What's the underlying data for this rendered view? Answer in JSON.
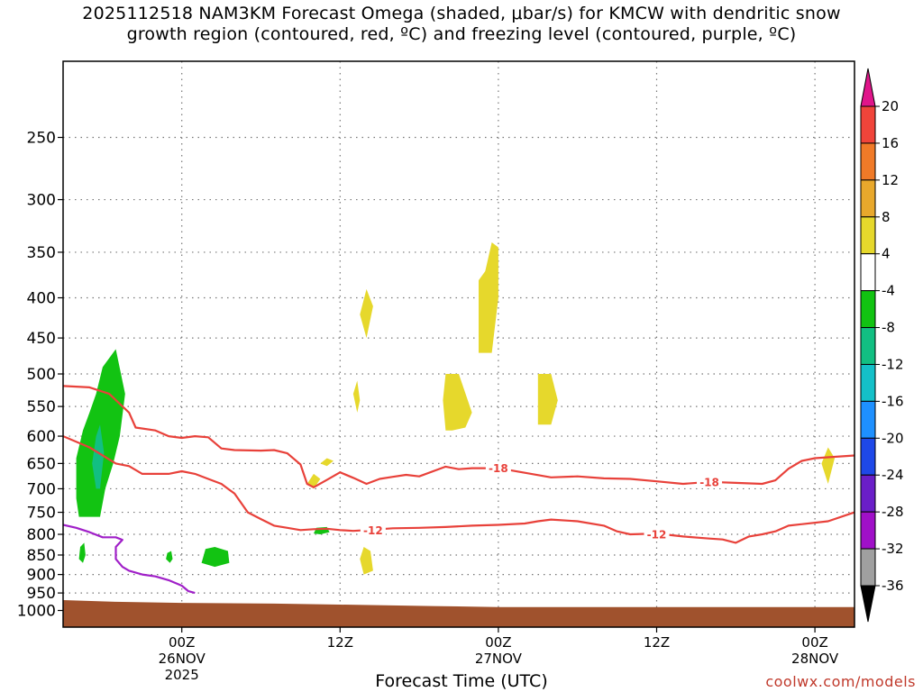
{
  "title": {
    "line1": "2025112518 NAM3KM Forecast Omega (shaded, μbar/s) for KMCW with dendritic snow",
    "line2": "growth region (contoured, red, ºC) and freezing level (contoured, purple, ºC)"
  },
  "credit": "coolwx.com/models",
  "colors": {
    "dgz_contour": "#e8413a",
    "freezing_contour": "#a020c8",
    "terrain": "#a0522d",
    "gridline": "#777777"
  },
  "chart_data": {
    "type": "heatmap",
    "xlabel": "Forecast Time (UTC)",
    "x_axis": {
      "unit": "forecast hours from 2025112518",
      "range": [
        -3,
        57
      ],
      "ticks": [
        {
          "hour": 6,
          "label": "00Z",
          "sub1": "26NOV",
          "sub2": "2025"
        },
        {
          "hour": 18,
          "label": "12Z",
          "sub1": "",
          "sub2": ""
        },
        {
          "hour": 30,
          "label": "00Z",
          "sub1": "27NOV",
          "sub2": ""
        },
        {
          "hour": 42,
          "label": "12Z",
          "sub1": "",
          "sub2": ""
        },
        {
          "hour": 54,
          "label": "00Z",
          "sub1": "28NOV",
          "sub2": ""
        }
      ]
    },
    "y_axis": {
      "unit": "pressure (hPa)",
      "scale": "log",
      "reversed": true,
      "range": [
        1050,
        200
      ],
      "ticks": [
        250,
        300,
        350,
        400,
        450,
        500,
        550,
        600,
        650,
        700,
        750,
        800,
        850,
        900,
        950,
        1000
      ]
    },
    "grid": true,
    "colorbar": {
      "position": "right",
      "unit": "μbar/s",
      "levels": [
        {
          "label": "20",
          "color": "#e8154f"
        },
        {
          "label": "16",
          "color": "#f0443a"
        },
        {
          "label": "12",
          "color": "#f07a28"
        },
        {
          "label": "8",
          "color": "#e8a82c"
        },
        {
          "label": "4",
          "color": "#e6d82c"
        },
        {
          "label": "-4",
          "color": "#ffffff"
        },
        {
          "label": "-8",
          "color": "#12c312"
        },
        {
          "label": "-12",
          "color": "#12bf82"
        },
        {
          "label": "-16",
          "color": "#14c0c8"
        },
        {
          "label": "-20",
          "color": "#1e90ff"
        },
        {
          "label": "-24",
          "color": "#1e48e8"
        },
        {
          "label": "-28",
          "color": "#6a1ec8"
        },
        {
          "label": "-32",
          "color": "#a010c8"
        },
        {
          "label": "-36",
          "color": "#a0a0a0"
        }
      ],
      "top_arrow_color": "#e0158a",
      "bottom_arrow_color": "#000000"
    },
    "contours": [
      {
        "type": "dgz",
        "label": "-18",
        "label_positions": [
          [
            30,
            659
          ],
          [
            46,
            686
          ]
        ],
        "points": [
          [
            -3,
            518
          ],
          [
            -1,
            520
          ],
          [
            0.5,
            530
          ],
          [
            2,
            560
          ],
          [
            2.5,
            585
          ],
          [
            4,
            590
          ],
          [
            5,
            600
          ],
          [
            6,
            603
          ],
          [
            7,
            600
          ],
          [
            8,
            602
          ],
          [
            9,
            622
          ],
          [
            10,
            625
          ],
          [
            12,
            626
          ],
          [
            13,
            625
          ],
          [
            14,
            631
          ],
          [
            15,
            652
          ],
          [
            15.5,
            690
          ],
          [
            16,
            697
          ],
          [
            17,
            682
          ],
          [
            18,
            667
          ],
          [
            19,
            678
          ],
          [
            20,
            690
          ],
          [
            21,
            680
          ],
          [
            22,
            676
          ],
          [
            23,
            672
          ],
          [
            24,
            675
          ],
          [
            26,
            656
          ],
          [
            27,
            661
          ],
          [
            28,
            659
          ],
          [
            30,
            659
          ],
          [
            32,
            668
          ],
          [
            34,
            677
          ],
          [
            36,
            675
          ],
          [
            38,
            679
          ],
          [
            40,
            680
          ],
          [
            42,
            685
          ],
          [
            44,
            690
          ],
          [
            46,
            686
          ],
          [
            48,
            688
          ],
          [
            50,
            690
          ],
          [
            51,
            683
          ],
          [
            52,
            660
          ],
          [
            53,
            645
          ],
          [
            54,
            640
          ],
          [
            57,
            635
          ]
        ]
      },
      {
        "type": "dgz",
        "label": "-12",
        "label_positions": [
          [
            20.5,
            790
          ],
          [
            42,
            800
          ]
        ],
        "points": [
          [
            -3,
            600
          ],
          [
            -1,
            620
          ],
          [
            1,
            650
          ],
          [
            2,
            655
          ],
          [
            3,
            670
          ],
          [
            5,
            670
          ],
          [
            6,
            665
          ],
          [
            7,
            670
          ],
          [
            8,
            680
          ],
          [
            9,
            690
          ],
          [
            10,
            710
          ],
          [
            11,
            750
          ],
          [
            12,
            765
          ],
          [
            13,
            780
          ],
          [
            14,
            785
          ],
          [
            15,
            790
          ],
          [
            16,
            788
          ],
          [
            17,
            787
          ],
          [
            18,
            790
          ],
          [
            19,
            792
          ],
          [
            20,
            790
          ],
          [
            22,
            786
          ],
          [
            24,
            785
          ],
          [
            26,
            783
          ],
          [
            28,
            780
          ],
          [
            30,
            778
          ],
          [
            32,
            775
          ],
          [
            33,
            770
          ],
          [
            34,
            766
          ],
          [
            36,
            770
          ],
          [
            38,
            780
          ],
          [
            39,
            793
          ],
          [
            40,
            800
          ],
          [
            42,
            798
          ],
          [
            44,
            805
          ],
          [
            46,
            810
          ],
          [
            47,
            812
          ],
          [
            48,
            820
          ],
          [
            49,
            805
          ],
          [
            50,
            800
          ],
          [
            51,
            793
          ],
          [
            52,
            780
          ],
          [
            55,
            770
          ],
          [
            57,
            750
          ]
        ]
      },
      {
        "type": "freezing",
        "label": "",
        "points": [
          [
            -3,
            778
          ],
          [
            -2,
            785
          ],
          [
            -1,
            795
          ],
          [
            0,
            807
          ],
          [
            1,
            807
          ],
          [
            1.5,
            813
          ],
          [
            1,
            830
          ],
          [
            1,
            860
          ],
          [
            1.5,
            880
          ],
          [
            2,
            890
          ],
          [
            3,
            900
          ],
          [
            4,
            905
          ],
          [
            5,
            915
          ],
          [
            6,
            930
          ],
          [
            6.5,
            945
          ],
          [
            7,
            950
          ]
        ]
      }
    ],
    "omega_regions": [
      {
        "omega": -8,
        "points": [
          [
            -1.8,
            760
          ],
          [
            -2,
            720
          ],
          [
            -2,
            640
          ],
          [
            -1.5,
            590
          ],
          [
            -1,
            560
          ],
          [
            -0.5,
            530
          ],
          [
            0,
            490
          ],
          [
            1,
            465
          ],
          [
            1.7,
            530
          ],
          [
            1.3,
            600
          ],
          [
            0.8,
            650
          ],
          [
            0.2,
            700
          ],
          [
            -0.2,
            760
          ]
        ]
      },
      {
        "omega": -12,
        "points": [
          [
            -0.5,
            700
          ],
          [
            -0.8,
            650
          ],
          [
            -0.5,
            600
          ],
          [
            -0.2,
            580
          ],
          [
            0.1,
            630
          ],
          [
            -0.2,
            700
          ]
        ]
      },
      {
        "omega": -8,
        "points": [
          [
            -1.8,
            860
          ],
          [
            -1.7,
            830
          ],
          [
            -1.4,
            820
          ],
          [
            -1.3,
            850
          ],
          [
            -1.5,
            870
          ]
        ]
      },
      {
        "omega": -8,
        "points": [
          [
            4.8,
            860
          ],
          [
            4.9,
            845
          ],
          [
            5.2,
            840
          ],
          [
            5.3,
            860
          ],
          [
            5.1,
            870
          ]
        ]
      },
      {
        "omega": -8,
        "points": [
          [
            7.5,
            870
          ],
          [
            7.8,
            835
          ],
          [
            8.5,
            830
          ],
          [
            9.5,
            840
          ],
          [
            9.6,
            870
          ],
          [
            8.5,
            880
          ]
        ]
      },
      {
        "omega": -8,
        "points": [
          [
            16,
            798
          ],
          [
            16.2,
            785
          ],
          [
            17,
            783
          ],
          [
            17.2,
            795
          ],
          [
            16.5,
            800
          ]
        ]
      },
      {
        "omega": 4,
        "points": [
          [
            15.5,
            690
          ],
          [
            16,
            670
          ],
          [
            16.5,
            680
          ],
          [
            16,
            700
          ]
        ]
      },
      {
        "omega": 4,
        "points": [
          [
            16.5,
            650
          ],
          [
            17,
            640
          ],
          [
            17.5,
            645
          ],
          [
            17,
            655
          ]
        ]
      },
      {
        "omega": 4,
        "points": [
          [
            19.5,
            420
          ],
          [
            20,
            390
          ],
          [
            20.5,
            410
          ],
          [
            20,
            450
          ]
        ]
      },
      {
        "omega": 4,
        "points": [
          [
            19,
            530
          ],
          [
            19.3,
            510
          ],
          [
            19.5,
            540
          ],
          [
            19.3,
            560
          ]
        ]
      },
      {
        "omega": 4,
        "points": [
          [
            19.5,
            860
          ],
          [
            19.8,
            830
          ],
          [
            20.3,
            840
          ],
          [
            20.5,
            890
          ],
          [
            19.8,
            900
          ]
        ]
      },
      {
        "omega": 4,
        "points": [
          [
            26,
            590
          ],
          [
            25.8,
            540
          ],
          [
            26,
            500
          ],
          [
            27,
            500
          ],
          [
            28,
            560
          ],
          [
            27.5,
            585
          ],
          [
            26.5,
            590
          ]
        ]
      },
      {
        "omega": 4,
        "points": [
          [
            28.5,
            470
          ],
          [
            28.5,
            380
          ],
          [
            29,
            370
          ],
          [
            29.5,
            340
          ],
          [
            30,
            345
          ],
          [
            30,
            400
          ],
          [
            29.5,
            470
          ]
        ]
      },
      {
        "omega": 4,
        "points": [
          [
            33,
            580
          ],
          [
            33,
            500
          ],
          [
            34,
            500
          ],
          [
            34.5,
            540
          ],
          [
            34,
            580
          ]
        ]
      },
      {
        "omega": 4,
        "points": [
          [
            54.5,
            650
          ],
          [
            55,
            620
          ],
          [
            55.5,
            640
          ],
          [
            55,
            690
          ]
        ]
      }
    ],
    "terrain": {
      "pressure_points": [
        [
          -3,
          970
        ],
        [
          1,
          975
        ],
        [
          6,
          978
        ],
        [
          13,
          980
        ],
        [
          18,
          983
        ],
        [
          25,
          987
        ],
        [
          30,
          990
        ],
        [
          40,
          990
        ],
        [
          57,
          990
        ]
      ]
    }
  }
}
